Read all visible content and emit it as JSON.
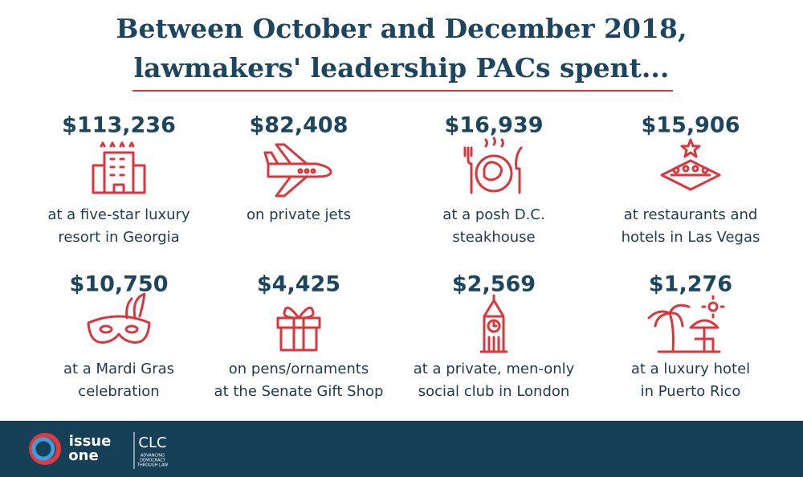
{
  "header": {
    "title_lines": [
      "Between October and December 2018,",
      "lawmakers' leadership PACs spent..."
    ]
  },
  "items": [
    {
      "amount": "$113,236",
      "description": [
        "at a five-star luxury",
        "resort in Georgia"
      ]
    },
    {
      "amount": "$82,408",
      "description": [
        "on private jets"
      ]
    },
    {
      "amount": "$16,939",
      "description": [
        "at a posh D.C.",
        "steakhouse"
      ]
    },
    {
      "amount": "$15,906",
      "description": [
        "at restaurants and",
        "hotels in Las Vegas"
      ]
    },
    {
      "amount": "$10,750",
      "description": [
        "at a Mardi Gras",
        "celebration"
      ]
    },
    {
      "amount": "$4,425",
      "description": [
        "on pens/ornaments",
        "at the Senate Gift Shop"
      ]
    },
    {
      "amount": "$2,569",
      "description": [
        "at a private, men-only",
        "social club in London"
      ]
    },
    {
      "amount": "$1,276",
      "description": [
        "at a luxury hotel",
        "in Puerto Rico"
      ]
    }
  ],
  "footer": {
    "logo_1": [
      "issue",
      "one"
    ],
    "logo_2": {
      "name": "CLC",
      "tagline": [
        "ADVANCING",
        "DEMOCRACY",
        "THROUGH LAW"
      ]
    }
  }
}
